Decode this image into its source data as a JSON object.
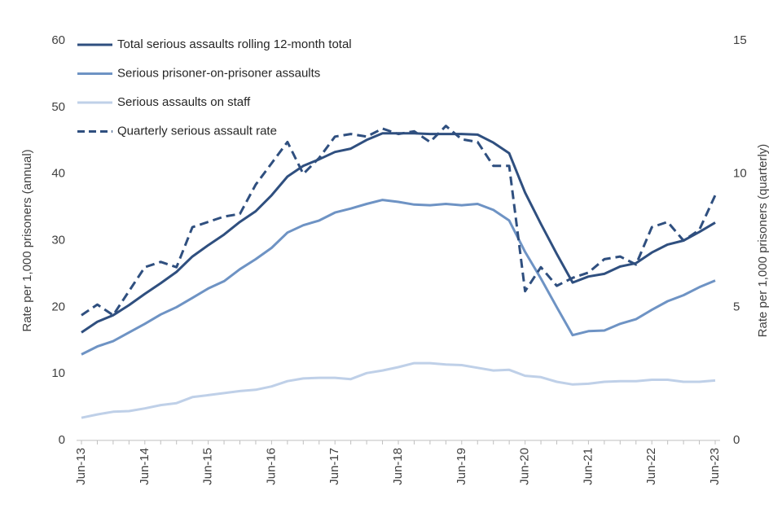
{
  "chart_data": {
    "type": "line",
    "title": "",
    "xlabel": "",
    "ylabel": "Rate per 1,000 prisoners (annual)",
    "y2label": "Rate per 1,000 prisoners (quarterly)",
    "ylim": [
      0,
      60
    ],
    "y2lim": [
      0,
      15
    ],
    "yticks": [
      0,
      10,
      20,
      30,
      40,
      50,
      60
    ],
    "y2ticks": [
      0,
      5,
      10,
      15
    ],
    "grid": false,
    "legend_position": "top-left",
    "x_tick_labels": [
      "Jun-13",
      "Jun-14",
      "Jun-15",
      "Jun-16",
      "Jun-17",
      "Jun-18",
      "Jun-19",
      "Jun-20",
      "Jun-21",
      "Jun-22",
      "Jun-23"
    ],
    "x": [
      "Jun-13",
      "Sep-13",
      "Dec-13",
      "Mar-14",
      "Jun-14",
      "Sep-14",
      "Dec-14",
      "Mar-15",
      "Jun-15",
      "Sep-15",
      "Dec-15",
      "Mar-16",
      "Jun-16",
      "Sep-16",
      "Dec-16",
      "Mar-17",
      "Jun-17",
      "Sep-17",
      "Dec-17",
      "Mar-18",
      "Jun-18",
      "Sep-18",
      "Dec-18",
      "Mar-19",
      "Jun-19",
      "Sep-19",
      "Dec-19",
      "Mar-20",
      "Jun-20",
      "Sep-20",
      "Dec-20",
      "Mar-21",
      "Jun-21",
      "Sep-21",
      "Dec-21",
      "Mar-22",
      "Jun-22",
      "Sep-22",
      "Dec-22",
      "Mar-23",
      "Jun-23"
    ],
    "series": [
      {
        "name": "Total serious assaults rolling 12-month total",
        "axis": "left",
        "color": "#2f4f7f",
        "dash": "solid",
        "values": [
          16.2,
          17.8,
          18.8,
          20.3,
          22.0,
          23.6,
          25.3,
          27.6,
          29.3,
          30.9,
          32.8,
          34.4,
          36.8,
          39.6,
          41.2,
          42.2,
          43.3,
          43.8,
          45.1,
          46.1,
          46.1,
          46.1,
          46.0,
          46.0,
          46.0,
          45.9,
          44.7,
          43.1,
          37.2,
          32.5,
          28.0,
          23.7,
          24.6,
          25.0,
          26.1,
          26.6,
          28.2,
          29.4,
          30.0,
          31.3,
          32.7
        ]
      },
      {
        "name": "Serious prisoner-on-prisoner assaults",
        "axis": "left",
        "color": "#6e93c4",
        "dash": "solid",
        "values": [
          12.9,
          14.1,
          14.9,
          16.2,
          17.5,
          18.9,
          20.0,
          21.4,
          22.8,
          23.9,
          25.7,
          27.2,
          28.9,
          31.2,
          32.3,
          33.0,
          34.2,
          34.8,
          35.5,
          36.1,
          35.8,
          35.4,
          35.3,
          35.5,
          35.3,
          35.5,
          34.6,
          33.0,
          28.3,
          24.3,
          20.0,
          15.8,
          16.4,
          16.5,
          17.5,
          18.2,
          19.6,
          20.9,
          21.8,
          23.0,
          24.0
        ]
      },
      {
        "name": "Serious assaults on staff",
        "axis": "left",
        "color": "#bfd0e8",
        "dash": "solid",
        "values": [
          3.4,
          3.9,
          4.3,
          4.4,
          4.8,
          5.3,
          5.6,
          6.5,
          6.8,
          7.1,
          7.4,
          7.6,
          8.1,
          8.9,
          9.3,
          9.4,
          9.4,
          9.2,
          10.1,
          10.5,
          11.0,
          11.6,
          11.6,
          11.4,
          11.3,
          10.9,
          10.5,
          10.6,
          9.7,
          9.5,
          8.8,
          8.4,
          8.5,
          8.8,
          8.9,
          8.9,
          9.1,
          9.1,
          8.8,
          8.8,
          9.0
        ]
      },
      {
        "name": "Quarterly serious assault rate",
        "axis": "right",
        "color": "#2f4f7f",
        "dash": "dashed",
        "values": [
          4.7,
          5.1,
          4.7,
          5.6,
          6.5,
          6.7,
          6.5,
          8.0,
          8.2,
          8.4,
          8.5,
          9.6,
          10.4,
          11.2,
          10.0,
          10.6,
          11.4,
          11.5,
          11.4,
          11.7,
          11.5,
          11.6,
          11.2,
          11.8,
          11.3,
          11.2,
          10.3,
          10.3,
          5.6,
          6.5,
          5.8,
          6.1,
          6.3,
          6.8,
          6.9,
          6.6,
          8.0,
          8.2,
          7.5,
          7.9,
          9.2
        ]
      }
    ]
  }
}
